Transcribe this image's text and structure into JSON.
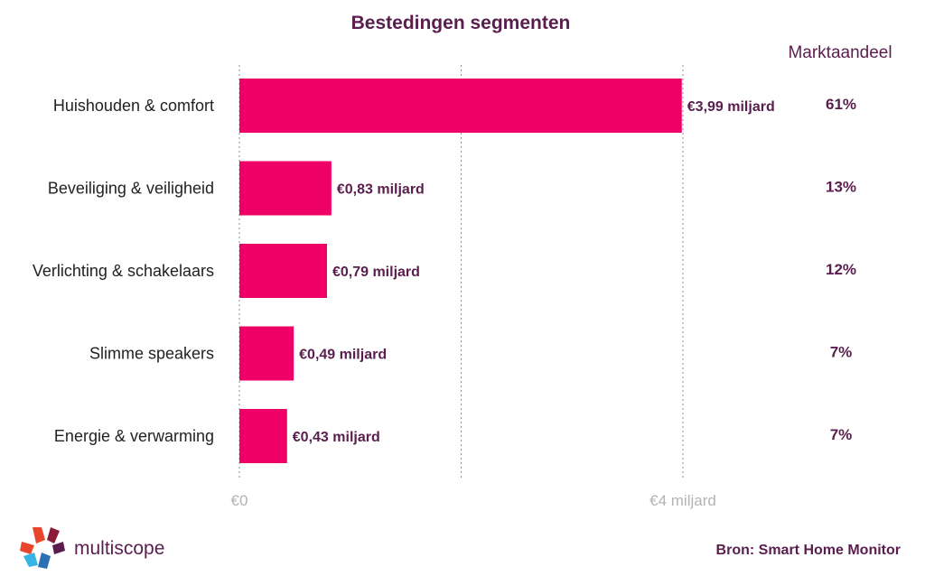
{
  "chart_data": {
    "type": "bar",
    "orientation": "horizontal",
    "title": "Bestedingen segmenten",
    "categories": [
      "Huishouden & comfort",
      "Beveiliging & veiligheid",
      "Verlichting & schakelaars",
      "Slimme speakers",
      "Energie & verwarming"
    ],
    "values": [
      3.99,
      0.83,
      0.79,
      0.49,
      0.43
    ],
    "value_labels": [
      "€3,99 miljard",
      "€0,83 miljard",
      "€0,79 miljard",
      "€0,49 miljard",
      "€0,43 miljard"
    ],
    "share_header": "Marktaandeel",
    "shares": [
      "61%",
      "13%",
      "12%",
      "7%",
      "7%"
    ],
    "x_ticks": [
      "€0",
      "",
      "€4 miljard"
    ],
    "x_tick_values": [
      0,
      2,
      4
    ],
    "xlim": [
      0,
      4
    ],
    "grid": true,
    "bar_color": "#ee0066",
    "text_color": "#5a1e4e"
  },
  "footer": {
    "brand": "multiscope",
    "source": "Bron: Smart Home Monitor"
  }
}
